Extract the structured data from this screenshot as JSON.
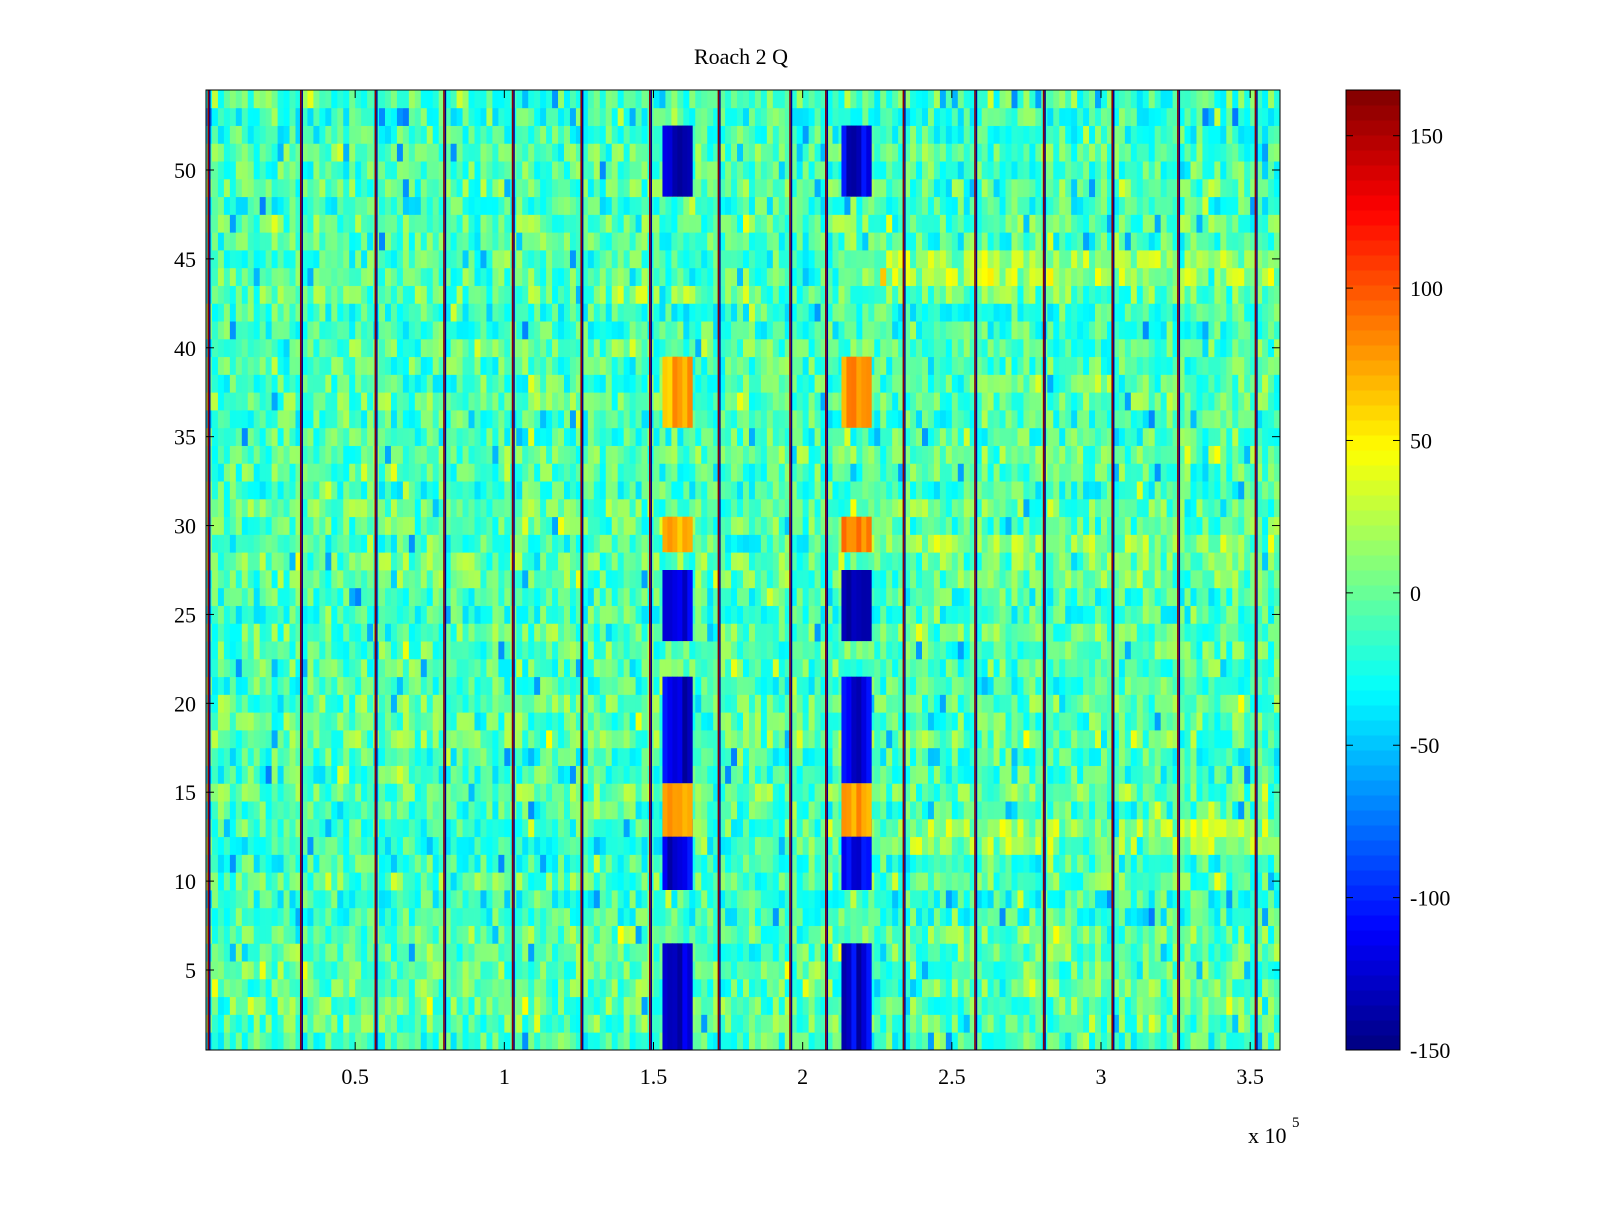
{
  "chart_data": {
    "type": "heatmap",
    "title": "Roach 2 Q",
    "xlabel": "",
    "ylabel": "",
    "x_multiplier_label": "x 10",
    "x_multiplier_exponent": "5",
    "xlim": [
      0,
      360000
    ],
    "ylim": [
      0.5,
      54.5
    ],
    "rows": 54,
    "x_ticks": [
      50000,
      100000,
      150000,
      200000,
      250000,
      300000,
      350000
    ],
    "x_tick_labels": [
      "0.5",
      "1",
      "1.5",
      "2",
      "2.5",
      "3",
      "3.5"
    ],
    "y_ticks": [
      5,
      10,
      15,
      20,
      25,
      30,
      35,
      40,
      45,
      50
    ],
    "y_tick_labels": [
      "5",
      "10",
      "15",
      "20",
      "25",
      "30",
      "35",
      "40",
      "45",
      "50"
    ],
    "colormap": "jet",
    "clim": [
      -150,
      165
    ],
    "colorbar_ticks": [
      150,
      100,
      50,
      0,
      -50,
      -100,
      -150
    ],
    "colorbar_tick_labels": [
      "150",
      "100",
      "50",
      "0",
      "-50",
      "-100",
      "-150"
    ],
    "background_value_range": [
      -40,
      40
    ],
    "separator_lines_x": [
      1000,
      32000,
      57000,
      80000,
      103000,
      126000,
      149000,
      172000,
      196000,
      208000,
      234000,
      258000,
      281000,
      304000,
      326000,
      352000
    ],
    "dark_blue_columns": [
      {
        "x_range": [
          153000,
          163000
        ],
        "rows": [
          [
            1,
            6
          ],
          [
            10,
            13
          ],
          [
            16,
            21
          ],
          [
            24,
            27
          ],
          [
            49,
            52
          ]
        ],
        "value": -130
      },
      {
        "x_range": [
          213000,
          223000
        ],
        "rows": [
          [
            1,
            6
          ],
          [
            10,
            13
          ],
          [
            16,
            21
          ],
          [
            24,
            27
          ],
          [
            49,
            52
          ]
        ],
        "value": -130
      }
    ],
    "bright_patches": [
      {
        "x_range": [
          153000,
          163000
        ],
        "rows": [
          [
            13,
            15
          ],
          [
            29,
            30
          ],
          [
            36,
            39
          ]
        ],
        "value": 70
      },
      {
        "x_range": [
          213000,
          223000
        ],
        "rows": [
          [
            13,
            15
          ],
          [
            29,
            30
          ],
          [
            36,
            39
          ]
        ],
        "value": 80
      }
    ],
    "warm_bands": [
      {
        "x_range": [
          215000,
          360000
        ],
        "rows": [
          12,
          13,
          29,
          44,
          45
        ],
        "value": 45
      }
    ]
  }
}
